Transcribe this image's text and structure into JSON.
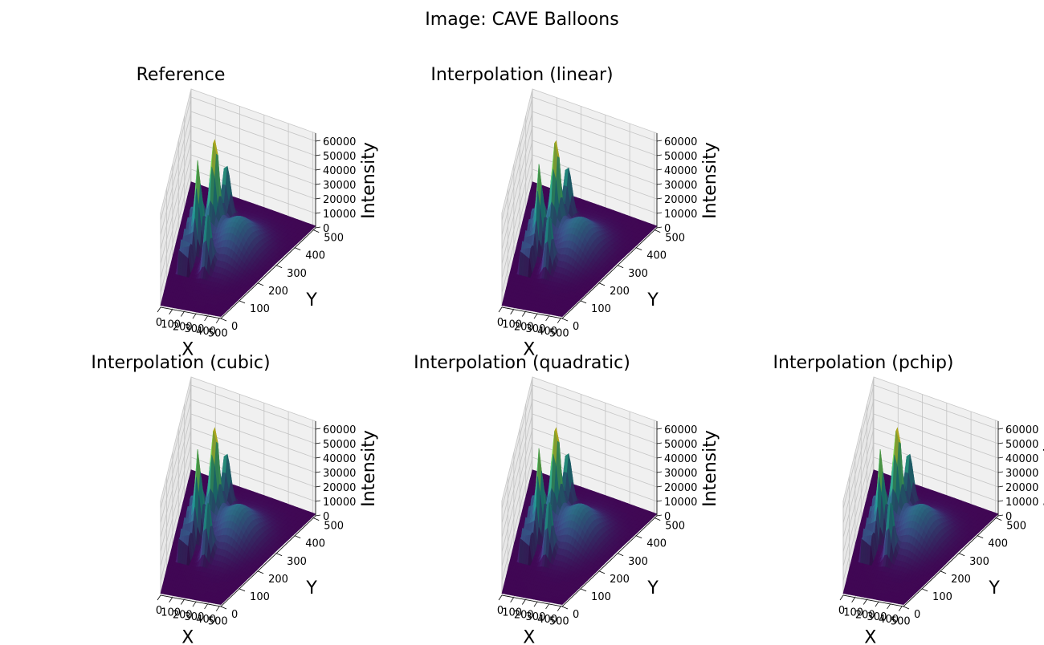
{
  "figure": {
    "title": "Image: CAVE Balloons"
  },
  "colors": {
    "pane_fill": "#f2f2f2",
    "grid": "#c4c4c4",
    "colormap": [
      "#440154",
      "#3b528b",
      "#21918c",
      "#5ec962",
      "#fde725"
    ]
  },
  "chart_data": [
    {
      "type": "surface3d",
      "title": "Reference",
      "method": "reference",
      "xlabel": "X",
      "ylabel": "Y",
      "zlabel": "Intensity",
      "xlim": [
        0,
        512
      ],
      "ylim": [
        0,
        512
      ],
      "zlim": [
        0,
        65535
      ],
      "xticks": [
        "0",
        "100",
        "200",
        "300",
        "400",
        "500"
      ],
      "yticks": [
        "0",
        "100",
        "200",
        "300",
        "400",
        "500"
      ],
      "zticks": [
        "0",
        "10000",
        "20000",
        "30000",
        "40000",
        "50000",
        "60000"
      ],
      "colormap": "viridis"
    },
    {
      "type": "surface3d",
      "title": "Interpolation (linear)",
      "method": "linear",
      "xlabel": "X",
      "ylabel": "Y",
      "zlabel": "Intensity",
      "xlim": [
        0,
        512
      ],
      "ylim": [
        0,
        512
      ],
      "zlim": [
        0,
        65535
      ],
      "xticks": [
        "0",
        "100",
        "200",
        "300",
        "400",
        "500"
      ],
      "yticks": [
        "0",
        "100",
        "200",
        "300",
        "400",
        "500"
      ],
      "zticks": [
        "0",
        "10000",
        "20000",
        "30000",
        "40000",
        "50000",
        "60000"
      ],
      "colormap": "viridis"
    },
    {
      "type": "surface3d",
      "title": "Interpolation (cubic)",
      "method": "cubic",
      "xlabel": "X",
      "ylabel": "Y",
      "zlabel": "Intensity",
      "xlim": [
        0,
        512
      ],
      "ylim": [
        0,
        512
      ],
      "zlim": [
        0,
        65535
      ],
      "xticks": [
        "0",
        "100",
        "200",
        "300",
        "400",
        "500"
      ],
      "yticks": [
        "0",
        "100",
        "200",
        "300",
        "400",
        "500"
      ],
      "zticks": [
        "0",
        "10000",
        "20000",
        "30000",
        "40000",
        "50000",
        "60000"
      ],
      "colormap": "viridis"
    },
    {
      "type": "surface3d",
      "title": "Interpolation (quadratic)",
      "method": "quadratic",
      "xlabel": "X",
      "ylabel": "Y",
      "zlabel": "Intensity",
      "xlim": [
        0,
        512
      ],
      "ylim": [
        0,
        512
      ],
      "zlim": [
        0,
        65535
      ],
      "xticks": [
        "0",
        "100",
        "200",
        "300",
        "400",
        "500"
      ],
      "yticks": [
        "0",
        "100",
        "200",
        "300",
        "400",
        "500"
      ],
      "zticks": [
        "0",
        "10000",
        "20000",
        "30000",
        "40000",
        "50000",
        "60000"
      ],
      "colormap": "viridis"
    },
    {
      "type": "surface3d",
      "title": "Interpolation (pchip)",
      "method": "pchip",
      "xlabel": "X",
      "ylabel": "Y",
      "zlabel": "Intensity",
      "xlim": [
        0,
        512
      ],
      "ylim": [
        0,
        512
      ],
      "zlim": [
        0,
        65535
      ],
      "xticks": [
        "0",
        "100",
        "200",
        "300",
        "400",
        "500"
      ],
      "yticks": [
        "0",
        "100",
        "200",
        "300",
        "400",
        "500"
      ],
      "zticks": [
        "0",
        "10000",
        "20000",
        "30000",
        "40000",
        "50000",
        "60000"
      ],
      "colormap": "viridis"
    }
  ]
}
